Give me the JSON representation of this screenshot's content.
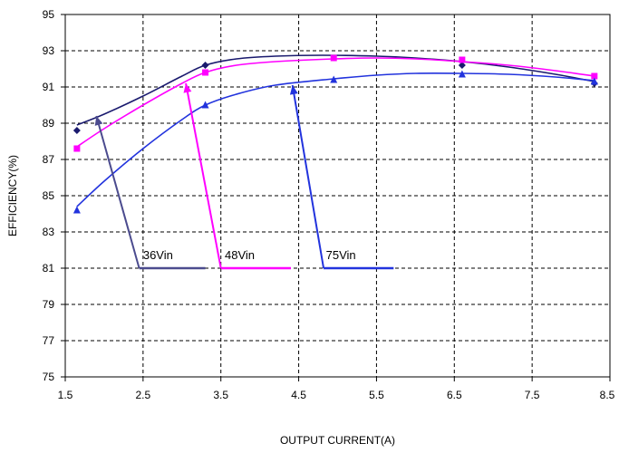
{
  "chart_data": {
    "type": "line",
    "title": "",
    "xlabel": "OUTPUT CURRENT(A)",
    "ylabel": "EFFICIENCY(%)",
    "xlim": [
      1.5,
      8.5
    ],
    "ylim": [
      75,
      95
    ],
    "x_ticks": [
      "1.5",
      "2.5",
      "3.5",
      "4.5",
      "5.5",
      "6.5",
      "7.5",
      "8.5"
    ],
    "y_ticks": [
      "75",
      "77",
      "79",
      "81",
      "83",
      "85",
      "87",
      "89",
      "91",
      "93",
      "95"
    ],
    "grid": true,
    "legend": "none",
    "series": [
      {
        "name": "36Vin",
        "color": "#1a1a6e",
        "marker": "diamond",
        "x": [
          1.65,
          3.3,
          6.6,
          8.3
        ],
        "y": [
          88.6,
          92.2,
          92.2,
          91.2
        ],
        "curve_x": [
          1.65,
          2.0,
          2.5,
          3.0,
          3.3,
          3.7,
          4.2,
          4.8,
          5.5,
          6.0,
          6.6,
          7.2,
          7.8,
          8.3
        ],
        "curve_y": [
          88.9,
          89.5,
          90.5,
          91.6,
          92.2,
          92.55,
          92.7,
          92.75,
          92.7,
          92.6,
          92.4,
          92.1,
          91.7,
          91.3
        ]
      },
      {
        "name": "48Vin",
        "color": "#ff00ff",
        "marker": "square",
        "x": [
          1.65,
          3.3,
          4.95,
          6.6,
          8.3
        ],
        "y": [
          87.6,
          91.8,
          92.6,
          92.5,
          91.6
        ],
        "curve_x": [
          1.65,
          2.0,
          2.5,
          3.0,
          3.3,
          3.7,
          4.2,
          4.95,
          5.5,
          6.0,
          6.6,
          7.2,
          7.8,
          8.3
        ],
        "curve_y": [
          87.7,
          88.7,
          90.0,
          91.2,
          91.8,
          92.2,
          92.4,
          92.55,
          92.6,
          92.55,
          92.4,
          92.2,
          91.9,
          91.6
        ]
      },
      {
        "name": "75Vin",
        "color": "#2233dd",
        "marker": "triangle",
        "x": [
          1.65,
          3.3,
          4.95,
          6.6,
          8.3
        ],
        "y": [
          84.2,
          90.0,
          91.4,
          91.7,
          91.3
        ],
        "curve_x": [
          1.65,
          2.0,
          2.5,
          3.0,
          3.3,
          3.7,
          4.2,
          4.95,
          5.5,
          6.0,
          6.6,
          7.2,
          7.8,
          8.3
        ],
        "curve_y": [
          84.4,
          85.8,
          87.6,
          89.2,
          90.0,
          90.6,
          91.1,
          91.45,
          91.65,
          91.75,
          91.75,
          91.7,
          91.55,
          91.35
        ]
      }
    ],
    "annotations": [
      {
        "text": "36Vin",
        "color": "#4b4b8e",
        "line_y": 81,
        "line_x": [
          2.45,
          3.3
        ],
        "pointer_from": [
          2.45,
          81
        ],
        "pointer_to": [
          1.9,
          89.4
        ],
        "label_at": [
          2.5,
          81.5
        ]
      },
      {
        "text": "48Vin",
        "color": "#ff00ff",
        "line_y": 81,
        "line_x": [
          3.5,
          4.4
        ],
        "pointer_from": [
          3.5,
          81
        ],
        "pointer_to": [
          3.05,
          91.2
        ],
        "label_at": [
          3.55,
          81.5
        ]
      },
      {
        "text": "75Vin",
        "color": "#2233dd",
        "line_y": 81,
        "line_x": [
          4.82,
          5.72
        ],
        "pointer_from": [
          4.82,
          81
        ],
        "pointer_to": [
          4.42,
          91.1
        ],
        "label_at": [
          4.85,
          81.5
        ]
      }
    ]
  }
}
